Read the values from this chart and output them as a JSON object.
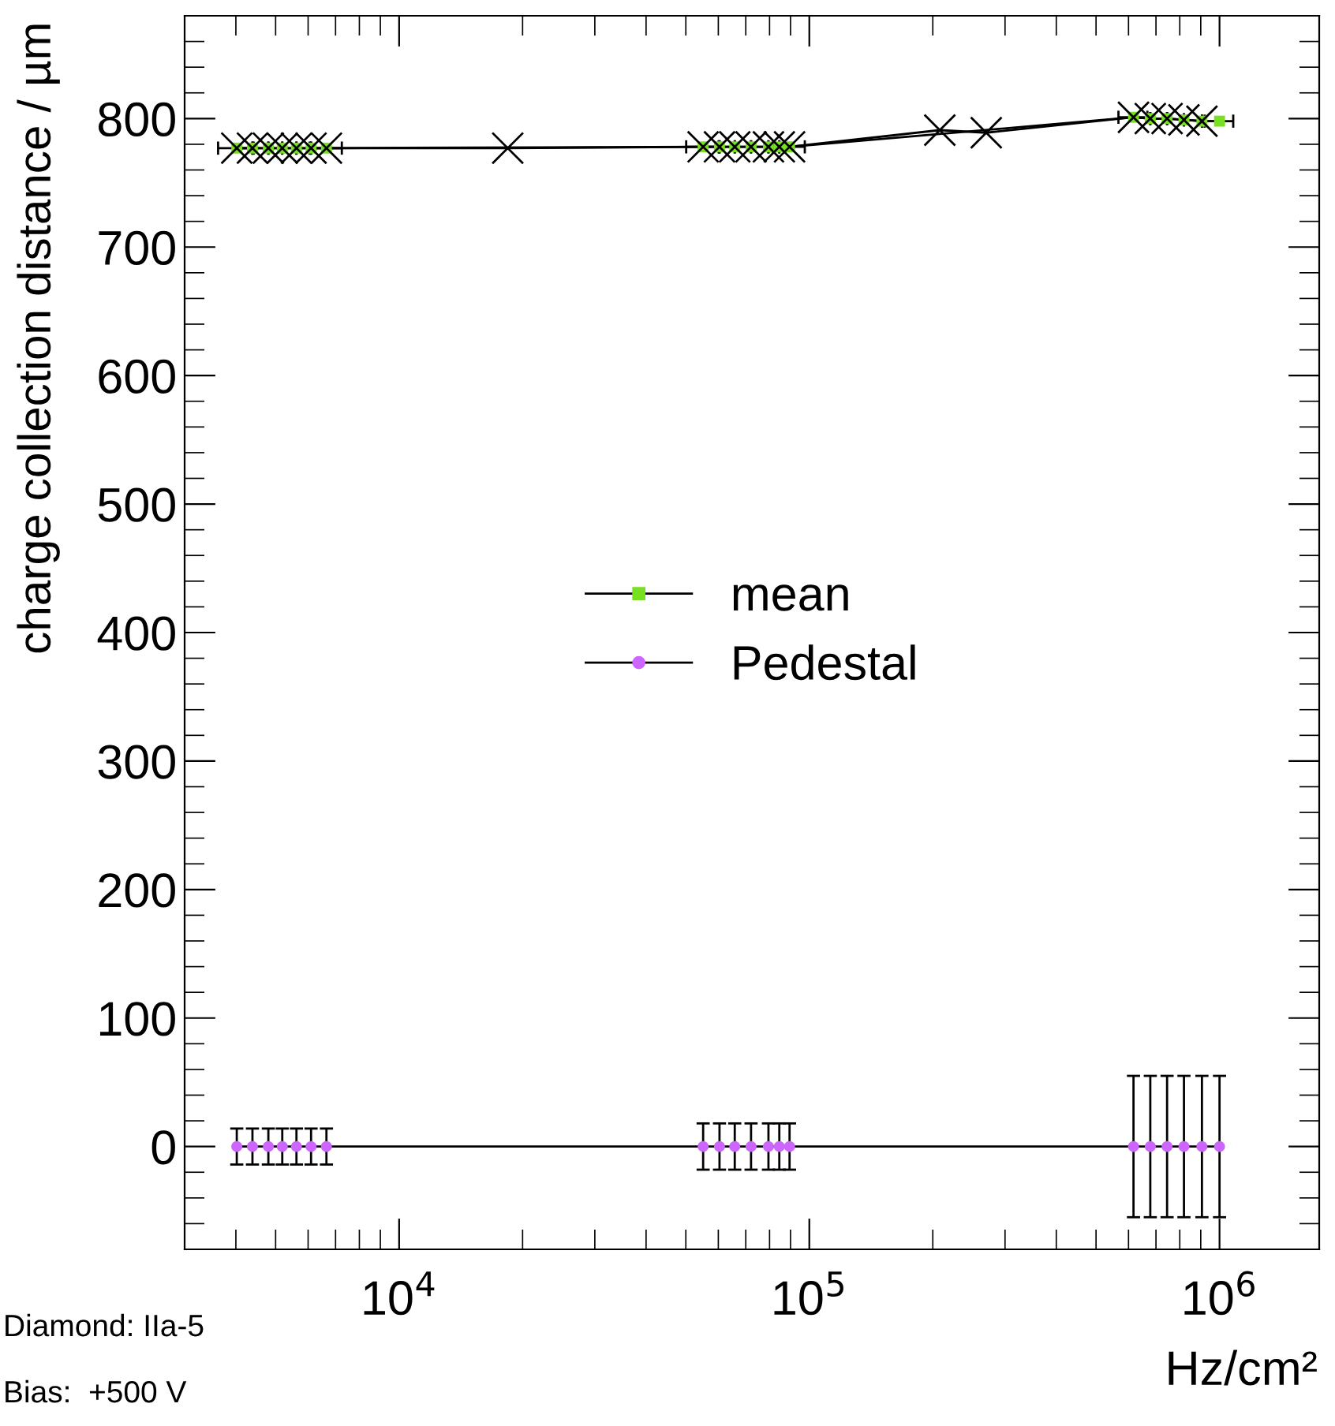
{
  "chart_data": {
    "type": "line",
    "ylabel": "charge collection distance / µm",
    "xlabel": "Hz/cm²",
    "log": "x",
    "xlim": [
      3000,
      1750000
    ],
    "xticks": [
      {
        "value": 10000,
        "label": "10$^{4}$"
      },
      {
        "value": 100000,
        "label": "10$^{5}$"
      },
      {
        "value": 1000000,
        "label": "10$^{6}$"
      }
    ],
    "ylim": [
      -80,
      880
    ],
    "yticks": [
      0,
      100,
      200,
      300,
      400,
      500,
      600,
      700,
      800
    ],
    "grid": false,
    "legend": "center",
    "annotations": [
      "Diamond: IIa-5",
      "Bias:  +500 V"
    ],
    "series": [
      {
        "name": "mean",
        "color": "#77e021",
        "marker": "square",
        "x": [
          4020,
          4390,
          4800,
          5190,
          5620,
          6100,
          6650,
          55100,
          60400,
          65800,
          72100,
          79500,
          84500,
          89500,
          617000,
          678000,
          745000,
          819000,
          906000,
          1000000
        ],
        "values": [
          777,
          777,
          777,
          777,
          777,
          777,
          777,
          778,
          778,
          778,
          778,
          778,
          778,
          778,
          801,
          800,
          800,
          799,
          798,
          798
        ],
        "xerrors": [
          400,
          null,
          null,
          null,
          null,
          null,
          600,
          5000,
          null,
          null,
          null,
          null,
          null,
          8000,
          50000,
          null,
          null,
          null,
          null,
          80000
        ]
      },
      {
        "color": "#000000",
        "marker": "cross",
        "x": [
          4020,
          4390,
          4800,
          5190,
          5620,
          6100,
          6650,
          18400,
          55100,
          60400,
          65800,
          72100,
          79500,
          84500,
          89500,
          208000,
          270000,
          617000,
          678000,
          745000,
          819000,
          906000
        ],
        "values": [
          777,
          777,
          777,
          777,
          777,
          777,
          777,
          777,
          778,
          778,
          778,
          778,
          778,
          778,
          778,
          791,
          789,
          801,
          800,
          800,
          799,
          798
        ]
      },
      {
        "name": "Pedestal",
        "color": "#cc66ff",
        "marker": "circle",
        "x": [
          4020,
          4390,
          4800,
          5190,
          5620,
          6100,
          6650,
          55100,
          60400,
          65800,
          72100,
          79500,
          84500,
          89500,
          617000,
          678000,
          745000,
          819000,
          906000,
          1000000
        ],
        "values": [
          0,
          0,
          0,
          0,
          0,
          0,
          0,
          0,
          0,
          0,
          0,
          0,
          0,
          0,
          0,
          0,
          0,
          0,
          0,
          0
        ],
        "errors": [
          14,
          14,
          14,
          14,
          14,
          14,
          14,
          18,
          18,
          18,
          18,
          18,
          18,
          18,
          55,
          55,
          55,
          55,
          55,
          55
        ]
      }
    ]
  }
}
